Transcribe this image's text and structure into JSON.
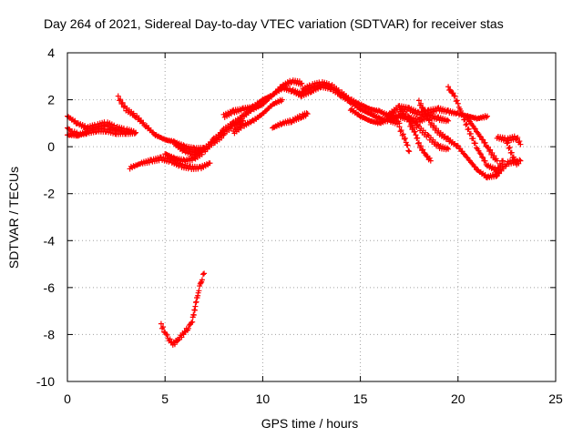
{
  "chart_data": {
    "type": "scatter",
    "title": "Day 264 of 2021, Sidereal Day-to-day VTEC variation (SDTVAR) for receiver stas",
    "xlabel": "GPS time / hours",
    "ylabel": "SDTVAR / TECUs",
    "xlim": [
      0,
      25
    ],
    "ylim": [
      -10,
      4
    ],
    "xticks": [
      0,
      5,
      10,
      15,
      20,
      25
    ],
    "yticks": [
      -10,
      -8,
      -6,
      -4,
      -2,
      0,
      2,
      4
    ],
    "grid": true,
    "marker": "+",
    "color": "#ff0000",
    "series": [
      {
        "name": "stas",
        "tracks": [
          [
            [
              0.0,
              1.3
            ],
            [
              0.5,
              1.0
            ],
            [
              1.0,
              0.8
            ],
            [
              1.5,
              0.9
            ],
            [
              2.0,
              1.0
            ],
            [
              2.5,
              0.8
            ],
            [
              3.0,
              0.7
            ],
            [
              3.5,
              0.6
            ]
          ],
          [
            [
              0.0,
              0.5
            ],
            [
              0.5,
              0.5
            ],
            [
              1.0,
              0.6
            ],
            [
              1.5,
              0.7
            ],
            [
              2.0,
              0.7
            ],
            [
              2.5,
              0.6
            ],
            [
              3.0,
              0.6
            ],
            [
              3.5,
              0.6
            ]
          ],
          [
            [
              0.0,
              0.8
            ],
            [
              0.3,
              0.6
            ],
            [
              0.6,
              0.5
            ],
            [
              1.0,
              0.6
            ]
          ],
          [
            [
              2.6,
              2.1
            ],
            [
              3.0,
              1.6
            ],
            [
              3.5,
              1.3
            ],
            [
              4.0,
              0.9
            ],
            [
              4.5,
              0.5
            ],
            [
              5.0,
              0.3
            ],
            [
              5.5,
              0.2
            ],
            [
              6.0,
              0.0
            ],
            [
              6.5,
              -0.1
            ],
            [
              7.0,
              -0.1
            ]
          ],
          [
            [
              3.2,
              -0.9
            ],
            [
              3.8,
              -0.7
            ],
            [
              4.3,
              -0.6
            ],
            [
              4.8,
              -0.5
            ],
            [
              5.3,
              -0.6
            ],
            [
              5.8,
              -0.8
            ],
            [
              6.3,
              -0.9
            ],
            [
              6.8,
              -0.9
            ],
            [
              7.3,
              -0.7
            ]
          ],
          [
            [
              5.0,
              -0.3
            ],
            [
              5.5,
              -0.5
            ],
            [
              6.0,
              -0.6
            ],
            [
              6.5,
              -0.5
            ],
            [
              7.0,
              -0.2
            ],
            [
              7.5,
              0.3
            ],
            [
              8.0,
              0.6
            ],
            [
              8.5,
              0.9
            ],
            [
              9.0,
              1.1
            ]
          ],
          [
            [
              5.5,
              0.1
            ],
            [
              6.0,
              -0.2
            ],
            [
              6.5,
              -0.3
            ],
            [
              7.0,
              -0.1
            ],
            [
              7.5,
              0.2
            ],
            [
              8.0,
              0.5
            ]
          ],
          [
            [
              7.5,
              0.2
            ],
            [
              8.0,
              0.7
            ],
            [
              8.5,
              1.0
            ],
            [
              9.0,
              1.3
            ],
            [
              9.5,
              1.6
            ],
            [
              10.0,
              1.8
            ],
            [
              10.5,
              2.2
            ],
            [
              11.0,
              2.6
            ],
            [
              11.5,
              2.8
            ],
            [
              12.0,
              2.7
            ]
          ],
          [
            [
              8.0,
              1.3
            ],
            [
              8.5,
              1.5
            ],
            [
              9.0,
              1.6
            ],
            [
              9.5,
              1.7
            ],
            [
              10.0,
              2.0
            ],
            [
              10.5,
              2.2
            ],
            [
              11.0,
              2.5
            ],
            [
              11.5,
              2.4
            ],
            [
              12.0,
              2.2
            ]
          ],
          [
            [
              8.5,
              0.6
            ],
            [
              9.0,
              0.9
            ],
            [
              9.5,
              1.1
            ],
            [
              10.0,
              1.4
            ],
            [
              10.5,
              1.8
            ],
            [
              11.0,
              2.0
            ]
          ],
          [
            [
              10.5,
              0.8
            ],
            [
              11.0,
              1.0
            ],
            [
              11.5,
              1.1
            ],
            [
              12.0,
              1.3
            ],
            [
              12.3,
              1.4
            ]
          ],
          [
            [
              11.5,
              2.4
            ],
            [
              12.0,
              2.2
            ],
            [
              12.5,
              2.4
            ],
            [
              13.0,
              2.6
            ],
            [
              13.5,
              2.5
            ],
            [
              14.0,
              2.2
            ],
            [
              14.5,
              1.9
            ],
            [
              15.0,
              1.6
            ],
            [
              15.5,
              1.4
            ],
            [
              16.0,
              1.2
            ],
            [
              16.5,
              1.1
            ],
            [
              17.0,
              1.0
            ]
          ],
          [
            [
              12.0,
              2.4
            ],
            [
              12.5,
              2.6
            ],
            [
              13.0,
              2.7
            ],
            [
              13.5,
              2.6
            ],
            [
              14.0,
              2.3
            ],
            [
              14.5,
              2.0
            ],
            [
              15.0,
              1.8
            ],
            [
              15.5,
              1.6
            ],
            [
              16.0,
              1.5
            ],
            [
              16.5,
              1.3
            ],
            [
              17.0,
              1.3
            ],
            [
              17.5,
              1.2
            ]
          ],
          [
            [
              14.5,
              1.6
            ],
            [
              15.0,
              1.3
            ],
            [
              15.5,
              1.1
            ],
            [
              16.0,
              1.0
            ],
            [
              16.5,
              1.2
            ],
            [
              17.0,
              1.3
            ],
            [
              17.5,
              1.2
            ],
            [
              18.0,
              1.1
            ],
            [
              18.5,
              1.3
            ],
            [
              19.0,
              1.2
            ],
            [
              19.5,
              1.1
            ]
          ],
          [
            [
              16.5,
              1.4
            ],
            [
              17.0,
              1.7
            ],
            [
              17.5,
              1.6
            ],
            [
              18.0,
              1.4
            ],
            [
              18.5,
              1.5
            ],
            [
              19.0,
              1.6
            ],
            [
              19.5,
              1.5
            ],
            [
              20.0,
              1.4
            ],
            [
              20.5,
              1.3
            ],
            [
              21.0,
              1.2
            ],
            [
              21.5,
              1.3
            ]
          ],
          [
            [
              17.0,
              0.8
            ],
            [
              17.3,
              0.3
            ],
            [
              17.5,
              -0.2
            ]
          ],
          [
            [
              17.5,
              1.0
            ],
            [
              17.8,
              0.6
            ],
            [
              18.0,
              0.1
            ],
            [
              18.3,
              -0.3
            ],
            [
              18.6,
              -0.6
            ]
          ],
          [
            [
              17.0,
              1.6
            ],
            [
              17.5,
              1.2
            ],
            [
              18.0,
              0.8
            ],
            [
              18.5,
              0.4
            ],
            [
              19.0,
              0.0
            ],
            [
              19.5,
              -0.1
            ]
          ],
          [
            [
              18.0,
              1.9
            ],
            [
              18.3,
              1.5
            ],
            [
              18.6,
              1.0
            ],
            [
              19.0,
              0.6
            ],
            [
              19.5,
              0.3
            ],
            [
              20.0,
              0.0
            ],
            [
              20.5,
              -0.5
            ],
            [
              21.0,
              -1.0
            ],
            [
              21.5,
              -1.3
            ],
            [
              22.0,
              -1.2
            ],
            [
              22.5,
              -0.7
            ],
            [
              23.0,
              -0.6
            ]
          ],
          [
            [
              19.5,
              2.5
            ],
            [
              19.8,
              2.2
            ],
            [
              20.0,
              1.8
            ],
            [
              20.3,
              1.2
            ],
            [
              20.6,
              0.6
            ],
            [
              21.0,
              -0.1
            ],
            [
              21.5,
              -0.8
            ],
            [
              22.0,
              -1.0
            ],
            [
              22.3,
              -0.6
            ]
          ],
          [
            [
              20.5,
              1.2
            ],
            [
              21.0,
              0.6
            ],
            [
              21.5,
              0.0
            ],
            [
              21.8,
              -0.4
            ],
            [
              22.0,
              -0.6
            ]
          ],
          [
            [
              22.0,
              0.4
            ],
            [
              22.5,
              0.3
            ],
            [
              23.0,
              0.4
            ],
            [
              23.2,
              0.1
            ]
          ],
          [
            [
              22.5,
              0.2
            ],
            [
              22.8,
              -0.4
            ],
            [
              23.0,
              -0.7
            ],
            [
              23.2,
              -0.6
            ]
          ],
          [
            [
              4.8,
              -7.6
            ],
            [
              5.0,
              -7.9
            ],
            [
              5.2,
              -8.2
            ],
            [
              5.4,
              -8.4
            ],
            [
              5.6,
              -8.3
            ],
            [
              5.8,
              -8.1
            ],
            [
              6.0,
              -7.9
            ],
            [
              6.2,
              -7.7
            ],
            [
              6.4,
              -7.4
            ],
            [
              6.5,
              -7.0
            ],
            [
              6.6,
              -6.6
            ],
            [
              6.7,
              -6.2
            ],
            [
              6.8,
              -5.9
            ],
            [
              6.9,
              -5.6
            ],
            [
              7.0,
              -5.4
            ]
          ]
        ]
      }
    ]
  }
}
